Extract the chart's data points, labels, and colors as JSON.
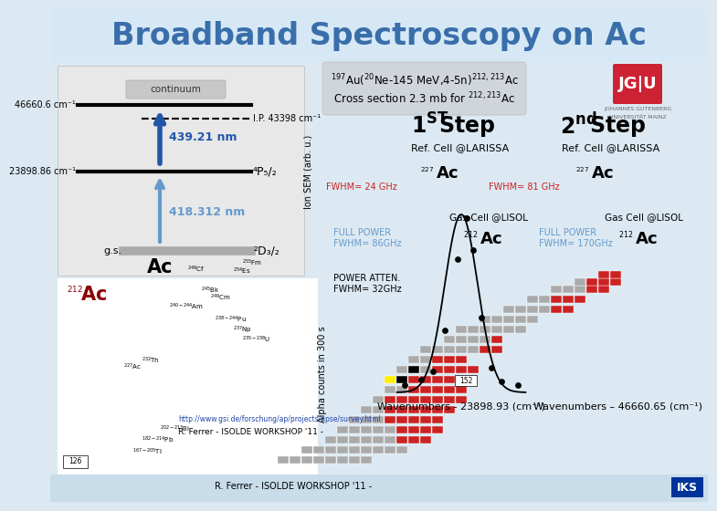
{
  "title": "Broadband Spectroscopy on Ac",
  "title_color": "#3a6eaa",
  "bg_top": "#d6e8f5",
  "bg_main": "#ffffff",
  "bg_color": "#dce9f2",
  "reaction_box_color": "#d0d5dc",
  "level_continuum": "continuum",
  "level_ip": "I.P. 43398 cm⁻¹",
  "level_top": "46660.6 cm⁻¹",
  "level_mid": "23898.86 cm⁻¹",
  "level_4p": "⁴P₅/₂",
  "level_nm1": "439.21 nm",
  "level_nm2": "418.312 nm",
  "level_gs": "g.s.",
  "level_2d": "²D₃/₂",
  "label_ac": "Ac",
  "label_212ac": "²¹²Ac",
  "sem_label": "Ion SEM (arb. u.)",
  "alpha_label": "Alpha counts in 300 s",
  "ref_cell": "Ref. Cell @LARISSA",
  "fwhm_1st": "FWHM= 24 GHz",
  "fwhm_2nd": "FWHM= 81 GHz",
  "full_power1": "FULL POWER\nFWHM= 86GHz",
  "full_power2": "FULL POWER\nFWHM= 170GHz",
  "power_atten": "POWER ATTEN.\nFWHM= 32GHz",
  "gas_cell": "Gas Cell @LISOL",
  "wavenumber1": "Wavenumbers - 23898.93 (cm⁻¹)",
  "wavenumber2": "Wavenumbers – 46660.65 (cm⁻¹)",
  "url": "http://www.gsi.de/forschung/ap/projects/apse/survey.html",
  "footer": "R. Ferrer - ISOLDE WORKSHOP '11 -",
  "red": "#cc2222",
  "dark_red": "#8b0000",
  "blue_dark": "#2255aa",
  "blue_mid": "#4477bb",
  "blue_light": "#6699cc",
  "gray_text": "#888888",
  "jgu_red": "#cc2233"
}
